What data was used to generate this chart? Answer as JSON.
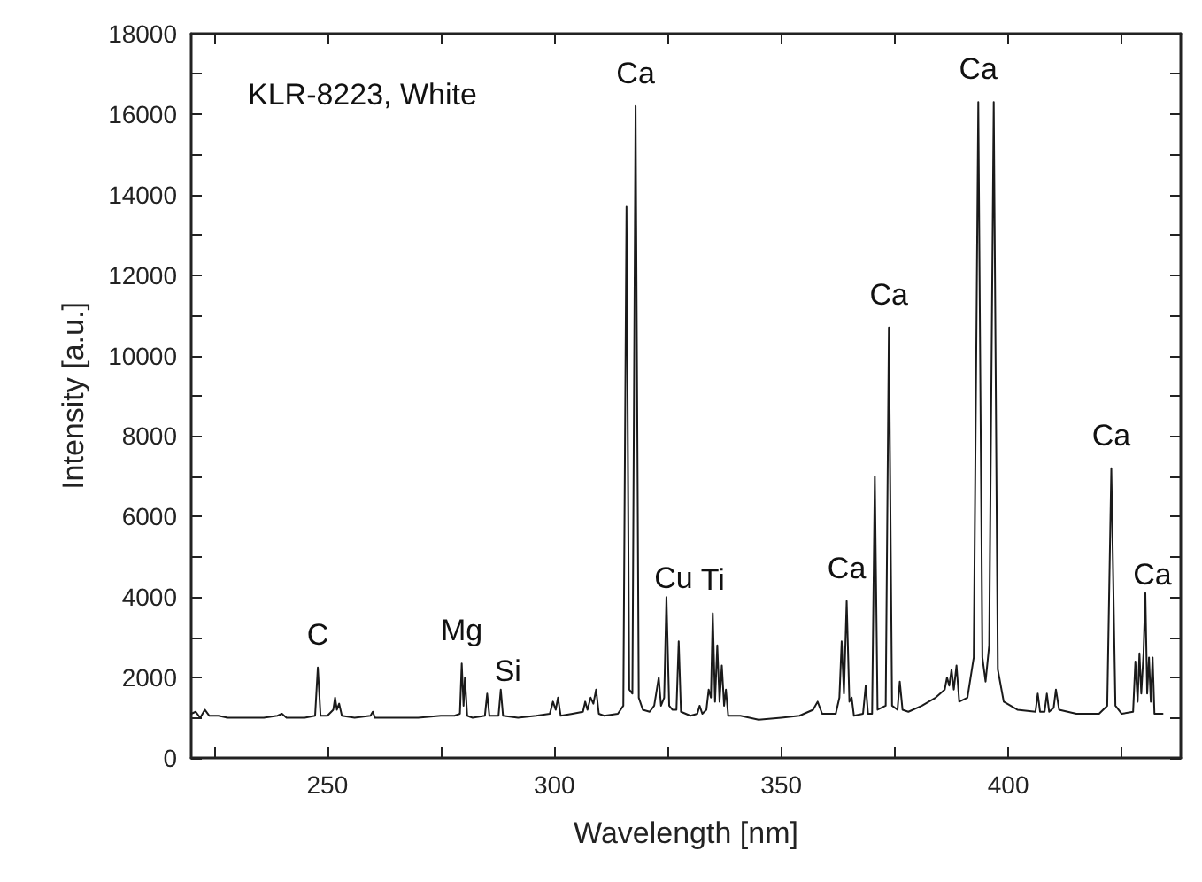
{
  "chart_data": {
    "type": "line",
    "xlabel": "Wavelength [nm]",
    "ylabel": "Intensity [a.u.]",
    "xlim": [
      220,
      438
    ],
    "xticks": [
      {
        "value": 225,
        "label": null
      },
      250,
      {
        "value": 275,
        "label": null
      },
      300,
      {
        "value": 325,
        "label": null
      },
      350,
      {
        "value": 375,
        "label": null
      },
      400,
      {
        "value": 425,
        "label": null
      }
    ],
    "ylim": [
      0,
      18000
    ],
    "yticks": [
      0,
      {
        "value": 1000,
        "label": null
      },
      2000,
      {
        "value": 3000,
        "label": null
      },
      4000,
      {
        "value": 5000,
        "label": null
      },
      6000,
      {
        "value": 7000,
        "label": null
      },
      8000,
      {
        "value": 9000,
        "label": null
      },
      10000,
      {
        "value": 11000,
        "label": null
      },
      12000,
      {
        "value": 13000,
        "label": null
      },
      14000,
      {
        "value": 15000,
        "label": null
      },
      16000,
      {
        "value": 17000,
        "label": null
      },
      18000
    ],
    "grid": false,
    "marker": "none",
    "line_style": "solid",
    "annotations": [
      "KLR-8223, White",
      {
        "text": "C",
        "x": 247.9,
        "y": 2250
      },
      {
        "text": "Mg",
        "x": 279.6,
        "y": 2350
      },
      {
        "text": "Si",
        "x": 288.2,
        "y": 1700
      },
      {
        "text": "Ca",
        "x": 317.9,
        "y": 16200
      },
      {
        "text": "Cu",
        "x": 324.7,
        "y": 4000
      },
      {
        "text": "Ti",
        "x": 334.9,
        "y": 3600
      },
      {
        "text": "Ca",
        "x": 364.4,
        "y": 3900
      },
      {
        "text": "Ca",
        "x": 373.7,
        "y": 10700
      },
      {
        "text": "Ca",
        "x": 393.4,
        "y": 16300
      },
      {
        "text": "Ca",
        "x": 422.7,
        "y": 7200
      },
      {
        "text": "Ca",
        "x": 430.2,
        "y": 4100
      }
    ],
    "series": [
      {
        "color": "#1a1a1a",
        "x": [
          220,
          221,
          222,
          223,
          224,
          226,
          228,
          232,
          236,
          239,
          240,
          241,
          245,
          247.3,
          247.9,
          248.5,
          250,
          251.3,
          251.7,
          252.1,
          252.6,
          253.2,
          256,
          259.5,
          260,
          260.5,
          265,
          270,
          275,
          278,
          279.2,
          279.6,
          280,
          280.3,
          280.8,
          282,
          284.7,
          285.2,
          285.7,
          287.7,
          288.2,
          288.7,
          292,
          296,
          299,
          299.7,
          300.3,
          300.8,
          301.4,
          304,
          306.3,
          306.8,
          307.3,
          308,
          308.6,
          309.2,
          309.8,
          311,
          314,
          315.2,
          315.9,
          316.5,
          317.2,
          317.9,
          318.6,
          319.5,
          321,
          322,
          323,
          323.5,
          324.2,
          324.7,
          325.3,
          326,
          326.9,
          327.4,
          327.9,
          330,
          331.5,
          332,
          332.6,
          333.5,
          334,
          334.5,
          334.9,
          335.4,
          335.9,
          336.4,
          336.9,
          337.4,
          337.8,
          338.3,
          341,
          345,
          350,
          354,
          357,
          358,
          359,
          362,
          362.8,
          363.3,
          363.8,
          364.4,
          365,
          365.5,
          366,
          368,
          368.6,
          369.1,
          370,
          370.6,
          371.2,
          373,
          373.7,
          374.4,
          375.6,
          376.1,
          376.7,
          378,
          381,
          384,
          386,
          386.5,
          387,
          387.5,
          388,
          388.6,
          389.2,
          391,
          392.4,
          393.4,
          394.3,
          395,
          395.8,
          396.8,
          397.7,
          399,
          402,
          406,
          406.5,
          407,
          408,
          408.5,
          409,
          410,
          410.5,
          411.2,
          415,
          420,
          421.8,
          422.7,
          423.6,
          425,
          427.5,
          428,
          428.5,
          428.9,
          429.3,
          429.8,
          430.2,
          430.6,
          431,
          431.4,
          431.8,
          432.2,
          434
        ],
        "values": [
          1100,
          1150,
          1000,
          1200,
          1050,
          1050,
          1000,
          1000,
          1000,
          1050,
          1100,
          1000,
          1000,
          1050,
          2250,
          1050,
          1050,
          1200,
          1500,
          1200,
          1350,
          1050,
          1000,
          1050,
          1150,
          1000,
          1000,
          1000,
          1050,
          1050,
          1100,
          2350,
          1300,
          2000,
          1050,
          1000,
          1050,
          1600,
          1050,
          1050,
          1700,
          1050,
          1000,
          1050,
          1100,
          1400,
          1200,
          1500,
          1050,
          1100,
          1150,
          1400,
          1200,
          1500,
          1350,
          1700,
          1100,
          1050,
          1100,
          1300,
          13700,
          1700,
          1600,
          16200,
          1500,
          1200,
          1150,
          1300,
          2000,
          1300,
          1500,
          4000,
          1300,
          1200,
          1200,
          2900,
          1150,
          1050,
          1100,
          1300,
          1100,
          1200,
          1700,
          1500,
          3600,
          1400,
          2800,
          1400,
          2300,
          1300,
          1700,
          1050,
          1050,
          950,
          1000,
          1050,
          1200,
          1400,
          1100,
          1100,
          1500,
          2900,
          1600,
          3900,
          1400,
          1500,
          1050,
          1100,
          1800,
          1100,
          1100,
          7000,
          1200,
          1300,
          10700,
          1300,
          1200,
          1900,
          1200,
          1150,
          1300,
          1500,
          1700,
          2000,
          1800,
          2200,
          1700,
          2300,
          1400,
          1500,
          2500,
          16300,
          2500,
          1900,
          2800,
          16300,
          2200,
          1400,
          1200,
          1150,
          1600,
          1150,
          1150,
          1600,
          1150,
          1250,
          1700,
          1200,
          1100,
          1100,
          1300,
          7200,
          1300,
          1100,
          1150,
          2400,
          1400,
          2600,
          1600,
          2600,
          4100,
          1600,
          2500,
          1400,
          2500,
          1100,
          1100
        ]
      }
    ]
  }
}
